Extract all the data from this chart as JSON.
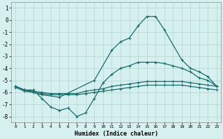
{
  "xlabel": "Humidex (Indice chaleur)",
  "bg_color": "#d6f0ef",
  "grid_color": "#b8d8d8",
  "line_color": "#1a6b6b",
  "xlim": [
    -0.5,
    23.5
  ],
  "ylim": [
    -8.5,
    1.5
  ],
  "xticks": [
    0,
    1,
    2,
    3,
    4,
    5,
    6,
    7,
    8,
    9,
    10,
    11,
    12,
    13,
    14,
    15,
    16,
    17,
    18,
    19,
    20,
    21,
    22,
    23
  ],
  "yticks": [
    -8,
    -7,
    -6,
    -5,
    -4,
    -3,
    -2,
    -1,
    0,
    1
  ],
  "series": [
    {
      "x": [
        0,
        1,
        3,
        5,
        9,
        11,
        12,
        13,
        14,
        15,
        16,
        17,
        19,
        20,
        21,
        22,
        23
      ],
      "y": [
        -5.5,
        -5.8,
        -6.2,
        -6.4,
        -5.0,
        -2.5,
        -1.8,
        -1.5,
        -0.5,
        0.3,
        0.3,
        -0.8,
        -3.3,
        -4.0,
        -4.3,
        -4.7,
        -5.5
      ]
    },
    {
      "x": [
        0,
        1,
        2,
        3,
        4,
        5,
        6,
        7,
        8,
        9,
        10,
        11,
        12,
        13,
        14,
        15,
        16,
        17,
        18,
        19,
        20,
        21,
        22,
        23
      ],
      "y": [
        -5.5,
        -5.8,
        -5.8,
        -6.5,
        -7.2,
        -7.5,
        -7.3,
        -8.0,
        -7.7,
        -6.5,
        -5.2,
        -4.5,
        -4.0,
        -3.8,
        -3.5,
        -3.5,
        -3.5,
        -3.6,
        -3.8,
        -4.0,
        -4.3,
        -4.8,
        -5.0,
        -5.5
      ]
    },
    {
      "x": [
        0,
        1,
        2,
        3,
        4,
        5,
        6,
        7,
        8,
        9,
        10,
        11,
        12,
        13,
        14,
        15,
        16,
        17,
        18,
        19,
        20,
        21,
        22,
        23
      ],
      "y": [
        -5.5,
        -5.8,
        -5.9,
        -6.0,
        -6.1,
        -6.1,
        -6.1,
        -6.1,
        -5.9,
        -5.8,
        -5.7,
        -5.5,
        -5.4,
        -5.3,
        -5.2,
        -5.1,
        -5.1,
        -5.1,
        -5.1,
        -5.1,
        -5.2,
        -5.3,
        -5.4,
        -5.5
      ]
    },
    {
      "x": [
        0,
        1,
        2,
        3,
        4,
        5,
        6,
        7,
        8,
        9,
        10,
        11,
        12,
        13,
        14,
        15,
        16,
        17,
        18,
        19,
        20,
        21,
        22,
        23
      ],
      "y": [
        -5.6,
        -5.9,
        -6.0,
        -6.1,
        -6.2,
        -6.2,
        -6.2,
        -6.2,
        -6.1,
        -6.0,
        -5.9,
        -5.8,
        -5.7,
        -5.6,
        -5.5,
        -5.4,
        -5.4,
        -5.4,
        -5.4,
        -5.4,
        -5.5,
        -5.6,
        -5.7,
        -5.8
      ]
    }
  ]
}
